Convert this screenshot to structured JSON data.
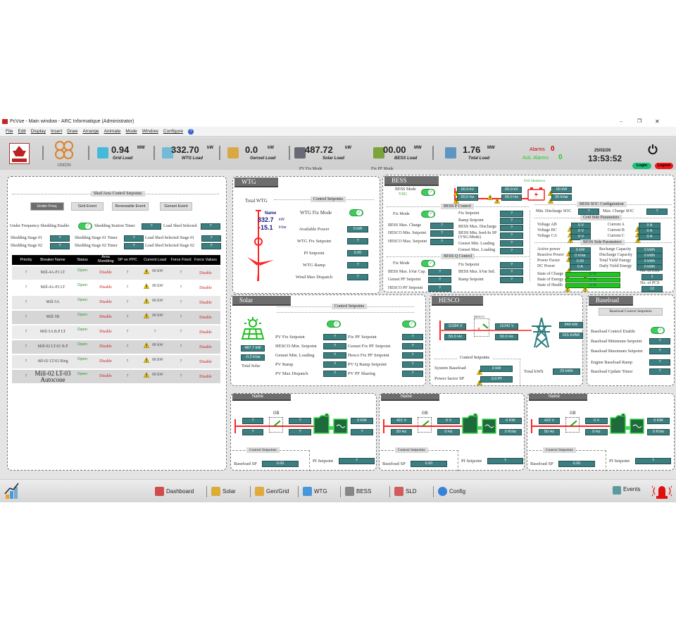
{
  "window": {
    "title": "PcVue - Main window - ARC Informatique (Administrator)",
    "menu": [
      "File",
      "Edit",
      "Display",
      "Insert",
      "Draw",
      "Arrange",
      "Animate",
      "Mode",
      "Window",
      "Configure"
    ]
  },
  "header": {
    "logo_left": "ORIENT",
    "logo_union": "UNION",
    "kpis": [
      {
        "value": "0.94",
        "unit": "MW",
        "label": "Grid Load",
        "icon": "transmission-tower-icon"
      },
      {
        "value": "332.70",
        "unit": "kW",
        "label": "WTG Load",
        "icon": "wind-turbine-icon"
      },
      {
        "value": "0.0",
        "unit": "kW",
        "label": "Genset Load",
        "icon": "genset-icon"
      },
      {
        "value": "487.72",
        "unit": "kW",
        "label": "Solar Load",
        "icon": "solar-panel-icon",
        "mode": "PV Fix Mode"
      },
      {
        "value": "00.00",
        "unit": "MW",
        "label": "BESS Load",
        "icon": "battery-icon",
        "mode": "Fix PF Mode"
      },
      {
        "value": "1.76",
        "unit": "MW",
        "label": "Total Load",
        "icon": "factory-icon"
      }
    ],
    "alarms_label": "Alarms",
    "alarms": "0",
    "ack_label": "Ack. Alarms",
    "ack": "0",
    "date": "25/02/26",
    "time": "13:53:52",
    "login": "Login",
    "logout": "Logout"
  },
  "shed": {
    "title": "Shed Area Control Setpoints",
    "buttons": [
      "Under Freq.",
      "Grid Event",
      "Renewable Event",
      "Genset Event"
    ],
    "enable_label": "Under Frequency Shedding Enable",
    "enable_on": true,
    "fields": [
      {
        "label": "Shedding Itration Timer",
        "value": "?"
      },
      {
        "label": "Load Shed Selected",
        "value": "?"
      },
      {
        "label": "Shedding Stage 01",
        "value": "?"
      },
      {
        "label": "Shedding Stage 01 Timer",
        "value": "?"
      },
      {
        "label": "Load Shed Selected Stage 01",
        "value": "?"
      },
      {
        "label": "Shedding Stage 02",
        "value": "?"
      },
      {
        "label": "Shedding Stage 02 Timer",
        "value": "?"
      },
      {
        "label": "Load Shed Selected Stage 02",
        "value": "?"
      }
    ],
    "columns": [
      "Priority",
      "Breaker Name",
      "Status",
      "Area Shedding",
      "SP on PPC",
      "Current Load",
      "Force Fixed",
      "Force Values"
    ],
    "rows": [
      {
        "priority": "?",
        "name": "Mill-4A-P1 LT",
        "status": "Open",
        "area": "Disable",
        "sp": "?",
        "load": "00 kW",
        "warn": true,
        "fixed": "?",
        "force": "Disable"
      },
      {
        "priority": "?",
        "name": "Mill-4A-P2 LT",
        "status": "Open",
        "area": "Disable",
        "sp": "?",
        "load": "00 kW",
        "warn": true,
        "fixed": "?",
        "force": "Disable"
      },
      {
        "priority": "?",
        "name": "Mill-5A",
        "status": "Open",
        "area": "Disable",
        "sp": "?",
        "load": "00 kW",
        "warn": true,
        "fixed": "?",
        "force": "Disable"
      },
      {
        "priority": "?",
        "name": "Mill-5B",
        "status": "Open",
        "area": "Disable",
        "sp": "?",
        "load": "00 kW",
        "warn": true,
        "fixed": "?",
        "force": "Disable"
      },
      {
        "priority": "?",
        "name": "Mill-5A B.P LT",
        "status": "Open",
        "area": "Disable",
        "sp": "?",
        "load": "?",
        "warn": false,
        "fixed": "?",
        "force": "Disable"
      },
      {
        "priority": "?",
        "name": "Mill-02 LT-01 B.P",
        "status": "Open",
        "area": "Disable",
        "sp": "?",
        "load": "00 kW",
        "warn": true,
        "fixed": "?",
        "force": "Disable"
      },
      {
        "priority": "?",
        "name": "4ill-02 LT-02 Ring",
        "status": "Open",
        "area": "Disable",
        "sp": "?",
        "load": "00 kW",
        "warn": true,
        "fixed": "?",
        "force": "Disable"
      },
      {
        "priority": "?",
        "name": "Mill-02 LT-03 Autocone",
        "status": "Open",
        "area": "Disable",
        "sp": "?",
        "load": "00 kW",
        "warn": true,
        "fixed": "?",
        "force": "Disable"
      }
    ]
  },
  "wtg": {
    "title": "WTG",
    "total_label": "Total WTG",
    "name": "Name",
    "kw": "332.7",
    "kw_unit": "kW",
    "kvar": "-15.1",
    "kvar_unit": "kVar",
    "setpoints_title": "Control Setpoints",
    "fix_mode_label": "WTG Fix Mode",
    "fix_mode_on": true,
    "fields": [
      {
        "label": "Available Power",
        "value": "0 kW"
      },
      {
        "label": "WTG Fix Setpoint",
        "value": "?"
      },
      {
        "label": "Pf Setpoint",
        "value": "0.00"
      },
      {
        "label": "WTG Ramp",
        "value": "?"
      },
      {
        "label": "Wind Max Dispatch",
        "value": "?"
      }
    ]
  },
  "bess": {
    "title": "BESS",
    "mode_label": "BESS Mode",
    "mode_value": "VSG",
    "mode_on": true,
    "shutdown": "ESS Shutdown",
    "bus": {
      "kv1": "00.0 kV",
      "hz1": "00.0 Hz",
      "kv2": "00.0 kV",
      "hz2": "00.0 Hz",
      "kw": "00 kW",
      "kvar": "00 kVar"
    },
    "p_title": "BESS P Control",
    "p_fix_label": "Fix Mode",
    "p_fix_on": true,
    "p_left": [
      {
        "label": "BESS Max. Charge",
        "value": "?"
      },
      {
        "label": "HESCO Min. Setpoint",
        "value": "?"
      },
      {
        "label": "HESCO Max. Setpoint",
        "value": "?"
      }
    ],
    "p_right": [
      {
        "label": "Fix Setpoint",
        "value": "?"
      },
      {
        "label": "Ramp Setpoint",
        "value": "?"
      },
      {
        "label": "BESS Max. Discharge",
        "value": "?"
      },
      {
        "label": "BESS Min. feed-In SP (VSG-Mode)",
        "value": "?"
      },
      {
        "label": "Genset Min. Loading",
        "value": "?"
      },
      {
        "label": "Genset Max. Loading",
        "value": "?"
      }
    ],
    "q_title": "BESS Q Control",
    "q_fix_label": "Fix Mode",
    "q_fix_on": true,
    "q_left": [
      {
        "label": "BESS Max. kVar Cap.",
        "value": "?"
      },
      {
        "label": "Genset PF Setpoint",
        "value": "?"
      },
      {
        "label": "HESCO PF Setpoint",
        "value": "?"
      }
    ],
    "q_right": [
      {
        "label": "Fix Setpoint",
        "value": "?"
      },
      {
        "label": "BESS Max. kVar Ind.",
        "value": "?"
      },
      {
        "label": "Ramp Setpoint",
        "value": "?"
      }
    ],
    "soc_title": "BESS SOC Configuration",
    "soc": [
      {
        "label": "Min. Discharge SOC",
        "value": "?"
      },
      {
        "label": "Max. Charge SOC",
        "value": "?"
      }
    ],
    "grid_title": "Grid Side Parameters",
    "grid": [
      {
        "label": "Voltage AB",
        "value": "0 V"
      },
      {
        "label": "Voltage BC",
        "value": "0 V"
      },
      {
        "label": "Voltage CA",
        "value": "0 V"
      },
      {
        "label": "Current A",
        "value": "0 A"
      },
      {
        "label": "Current B",
        "value": "0 A"
      },
      {
        "label": "Current C",
        "value": "0 A"
      }
    ],
    "side_title": "BESS Side Parameters",
    "side": [
      {
        "label": "Active power",
        "value": "0 kW",
        "warn": true
      },
      {
        "label": "Reactive Power",
        "value": "0 kVar",
        "warn": true
      },
      {
        "label": "Power Factor",
        "value": "0.00",
        "warn": false
      },
      {
        "label": "DC Power",
        "value": "0 A",
        "warn": true
      },
      {
        "label": "Recharge Capacity",
        "value": "0 kWh"
      },
      {
        "label": "Discharge Capacity",
        "value": "0 kWh"
      },
      {
        "label": "Total Yield Energy",
        "value": "0 kWh"
      },
      {
        "label": "Daily Yield Energy",
        "value": "0 kWh"
      }
    ],
    "states": [
      {
        "label": "State of Charge",
        "value": "0 %",
        "percent": 0
      },
      {
        "label": "State of Energy",
        "value": "0 %",
        "percent": 0
      },
      {
        "label": "State of Health",
        "value": "0 %",
        "percent": 0
      }
    ],
    "ess_label": "No. of ESS",
    "ess": "1",
    "pcs_label": "No. of PCS",
    "pcs": "12"
  },
  "solar": {
    "title": "Solar",
    "setpoints_title": "Control Setpoints",
    "kw": "487.7 kW",
    "kvar": "-0.2 kVar",
    "total_label": "Total Solar",
    "toggle_left_on": true,
    "toggle_right_on": true,
    "left": [
      {
        "label": "PV Fix Setpoint",
        "value": "?"
      },
      {
        "label": "HESCO Min. Setpoint",
        "value": "?"
      },
      {
        "label": "Genset Min. Loading",
        "value": "?"
      },
      {
        "label": "PV Ramp",
        "value": "?"
      },
      {
        "label": "PV Max Dispatch",
        "value": "?"
      }
    ],
    "right": [
      {
        "label": "Fix PF Setpoint",
        "value": "?"
      },
      {
        "label": "Genset Fix PF Setpoint",
        "value": "?"
      },
      {
        "label": "Hesco Fix PF Setpoint",
        "value": "?"
      },
      {
        "label": "PV Q Ramp Setpoint",
        "value": "?"
      },
      {
        "label": "PV PF Sharing",
        "value": "?"
      }
    ]
  },
  "hesco": {
    "title": "HESCO",
    "breaker_label": "HESCO",
    "v1": "11084 V",
    "hz1": "50.0 Hz",
    "v2": "11042 V",
    "hz2": "50.0 Hz",
    "kw": "940 kW",
    "kvar": "915 kVAR",
    "setpoints_title": "Control Setpoints",
    "system_baseload_label": "System Baseload",
    "system_baseload": "0 kW",
    "pf_label": "Power factor SP",
    "pf": "0.0 Pf",
    "total_label": "Total kWh",
    "total": "29 kWh"
  },
  "baseload": {
    "title": "Baseload",
    "button": "Baseload Control Setpoints",
    "enable_label": "Baseload Control Enable",
    "enable_on": true,
    "fields": [
      {
        "label": "Baseload Minimum Setpoint",
        "value": "?"
      },
      {
        "label": "Baseload Maximum Setpoint",
        "value": "?"
      },
      {
        "label": "Engine Baseload Ramp",
        "value": "?"
      },
      {
        "label": "Baseload Update Timer",
        "value": "?"
      }
    ]
  },
  "gensets": [
    {
      "name": "Name",
      "gb": "GB",
      "bus_v": "?",
      "bus_hz": "?",
      "gen_v": "?",
      "gen_hz": "?",
      "kw": "0 KW",
      "kvar": "?",
      "setpoints_title": "Control Setpoints",
      "baseload_label": "Baseload SP",
      "baseload": "0.00",
      "pf_label": "Pf Setpoint",
      "pf": "?"
    },
    {
      "name": "Name",
      "gb": "GB",
      "bus_v": "421 V",
      "bus_hz": "50 Hz",
      "gen_v": "0 V",
      "gen_hz": "0 Hz",
      "kw": "0 KW",
      "kvar": "0 KVar",
      "setpoints_title": "Control Setpoints",
      "baseload_label": "Baseload SP",
      "baseload": "0.00",
      "pf_label": "Pf Setpoint",
      "pf": "?"
    },
    {
      "name": "Name",
      "gb": "GB",
      "bus_v": "422 V",
      "bus_hz": "50 Hz",
      "gen_v": "0 V",
      "gen_hz": "0 Hz",
      "kw": "0 KW",
      "kvar": "0 KVar",
      "setpoints_title": "Control Setpoints",
      "baseload_label": "Baseload SP",
      "baseload": "0.00",
      "pf_label": "Pf Setpoint",
      "pf": "?"
    }
  ],
  "nav": {
    "items": [
      {
        "label": "Dashboard",
        "icon": "dashboard-icon"
      },
      {
        "label": "Solar",
        "icon": "solar-icon"
      },
      {
        "label": "Gen/Grid",
        "icon": "genset-icon"
      },
      {
        "label": "WTG",
        "icon": "wind-turbine-icon"
      },
      {
        "label": "BESS",
        "icon": "battery-icon"
      },
      {
        "label": "SLD",
        "icon": "sld-icon"
      },
      {
        "label": "Config",
        "icon": "gear-icon"
      }
    ],
    "events": "Events"
  },
  "colors": {
    "value_box": "#3c7f80",
    "toggle_on": "#3dcb5a",
    "alarm": "#cc0000",
    "ack": "#22cc22",
    "line": "#ff2020"
  }
}
